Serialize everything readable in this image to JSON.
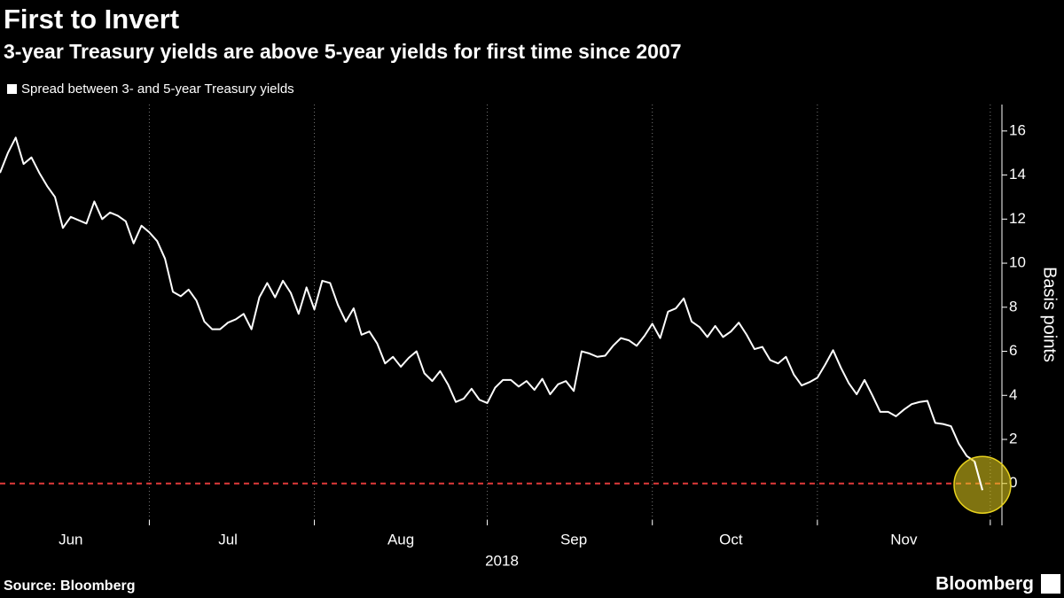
{
  "chart_data": {
    "type": "line",
    "title": "First to Invert",
    "subtitle": "3-year Treasury yields are above 5-year yields for first time since 2007",
    "ylabel": "Basis points",
    "xlabel": "2018",
    "source": "Source: Bloomberg",
    "logo": "Bloomberg",
    "categories": [
      null,
      null,
      null,
      null,
      null,
      null,
      null,
      null,
      null,
      "Jun",
      null,
      null,
      null,
      null,
      null,
      null,
      null,
      null,
      null,
      null,
      null,
      null,
      null,
      null,
      null,
      null,
      null,
      null,
      null,
      "Jul",
      null,
      null,
      null,
      null,
      null,
      null,
      null,
      null,
      null,
      null,
      null,
      null,
      null,
      null,
      null,
      null,
      null,
      null,
      null,
      null,
      null,
      "Aug",
      null,
      null,
      null,
      null,
      null,
      null,
      null,
      null,
      null,
      null,
      null,
      null,
      null,
      null,
      null,
      null,
      null,
      null,
      null,
      null,
      null,
      "Sep",
      null,
      null,
      null,
      null,
      null,
      null,
      null,
      null,
      null,
      null,
      null,
      null,
      null,
      null,
      null,
      null,
      null,
      null,
      null,
      "Oct",
      null,
      null,
      null,
      null,
      null,
      null,
      null,
      null,
      null,
      null,
      null,
      null,
      null,
      null,
      null,
      null,
      null,
      null,
      null,
      null,
      null,
      "Nov",
      null,
      null,
      null,
      null,
      null,
      null,
      null,
      null,
      null,
      null
    ],
    "series": [
      {
        "name": "Spread between 3- and 5-year Treasury yields",
        "color": "#ffffff",
        "values": [
          14.1,
          15.0,
          15.7,
          14.5,
          14.8,
          14.1,
          13.5,
          13.0,
          11.6,
          12.1,
          11.95,
          11.8,
          12.8,
          12.0,
          12.3,
          12.15,
          11.9,
          10.9,
          11.7,
          11.4,
          11.0,
          10.2,
          8.7,
          8.5,
          8.8,
          8.3,
          7.35,
          7.0,
          7.0,
          7.3,
          7.45,
          7.7,
          7.0,
          8.45,
          9.1,
          8.45,
          9.2,
          8.65,
          7.7,
          8.9,
          7.9,
          9.2,
          9.1,
          8.1,
          7.35,
          7.95,
          6.75,
          6.9,
          6.35,
          5.45,
          5.75,
          5.3,
          5.7,
          6.0,
          5.0,
          4.65,
          5.1,
          4.5,
          3.7,
          3.85,
          4.3,
          3.8,
          3.65,
          4.35,
          4.7,
          4.7,
          4.4,
          4.65,
          4.25,
          4.75,
          4.05,
          4.5,
          4.65,
          4.2,
          6.0,
          5.9,
          5.75,
          5.8,
          6.25,
          6.6,
          6.5,
          6.25,
          6.7,
          7.25,
          6.6,
          7.8,
          7.95,
          8.4,
          7.35,
          7.1,
          6.65,
          7.15,
          6.65,
          6.9,
          7.3,
          6.75,
          6.1,
          6.2,
          5.6,
          5.45,
          5.75,
          4.95,
          4.45,
          4.6,
          4.8,
          5.4,
          6.05,
          5.25,
          4.55,
          4.05,
          4.7,
          4.0,
          3.25,
          3.25,
          3.05,
          3.35,
          3.6,
          3.7,
          3.75,
          2.75,
          2.7,
          2.6,
          1.8,
          1.25,
          1.0,
          -0.3
        ]
      }
    ],
    "ylim": [
      -1.9,
      17.2
    ],
    "yticks": [
      0,
      2,
      4,
      6,
      8,
      10,
      12,
      14,
      16
    ],
    "zero_line": {
      "value": 0,
      "color": "#e03a3a"
    },
    "highlight_color": "#e8d21d",
    "grid": true
  }
}
